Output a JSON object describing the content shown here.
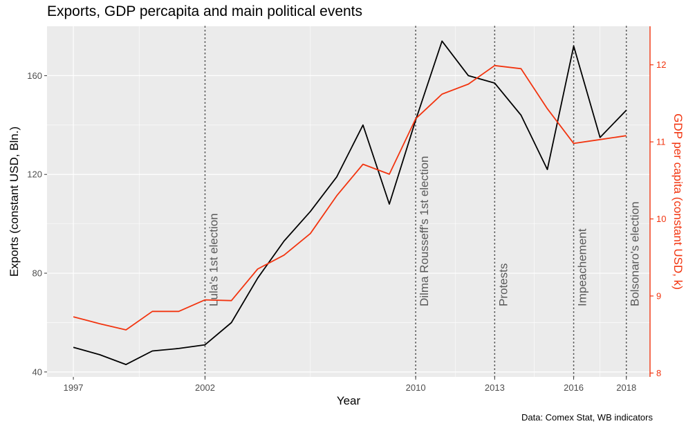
{
  "chart_data": {
    "type": "line",
    "title": "Exports, GDP percapita and main political events",
    "xlabel": "Year",
    "ylabel": "Exports (constant USD, Bln.)",
    "y2label": "GDP per capita (constant USD, k)",
    "caption": "Data: Comex Stat, WB indicators",
    "xlim": [
      1996.0,
      2018.9
    ],
    "ylim": [
      38,
      180
    ],
    "y2lim": [
      7.95,
      12.5
    ],
    "x_ticks": [
      "1997",
      "2002",
      "2010",
      "2013",
      "2016",
      "2018"
    ],
    "y_ticks": [
      "40",
      "80",
      "120",
      "160"
    ],
    "y2_ticks": [
      "8",
      "9",
      "10",
      "11",
      "12"
    ],
    "grid": true,
    "colors": {
      "exports": "#000000",
      "gdp": "#f2340f",
      "panel": "#ebebeb",
      "grid": "#ffffff",
      "vline": "#595959"
    },
    "series": [
      {
        "axis": "left",
        "x": [
          1997,
          1998,
          1999,
          2000,
          2001,
          2002,
          2003,
          2004,
          2005,
          2006,
          2007,
          2008,
          2009,
          2010,
          2011,
          2012,
          2013,
          2014,
          2015,
          2016,
          2017,
          2018
        ],
        "values": [
          50,
          47,
          43,
          48.5,
          49.5,
          51,
          60,
          78,
          93,
          105,
          119,
          140,
          108,
          142,
          174,
          160,
          157,
          144,
          122,
          172,
          135,
          146
        ]
      },
      {
        "axis": "right",
        "x": [
          1997,
          1998,
          1999,
          2000,
          2001,
          2002,
          2003,
          2004,
          2005,
          2006,
          2007,
          2008,
          2009,
          2010,
          2011,
          2012,
          2013,
          2014,
          2015,
          2016,
          2017,
          2018
        ],
        "values": [
          8.73,
          8.64,
          8.56,
          8.8,
          8.8,
          8.95,
          8.94,
          9.35,
          9.53,
          9.81,
          10.3,
          10.71,
          10.58,
          11.3,
          11.62,
          11.75,
          11.99,
          11.95,
          11.43,
          10.98,
          11.03,
          11.08
        ]
      }
    ],
    "events": [
      {
        "year": 2002,
        "label": "Lula's 1st election"
      },
      {
        "year": 2010,
        "label": "Dilma Rousseff's 1st election"
      },
      {
        "year": 2013,
        "label": "Protests"
      },
      {
        "year": 2016,
        "label": "Impeachement"
      },
      {
        "year": 2018,
        "label": "Bolsonaro's election"
      }
    ]
  }
}
